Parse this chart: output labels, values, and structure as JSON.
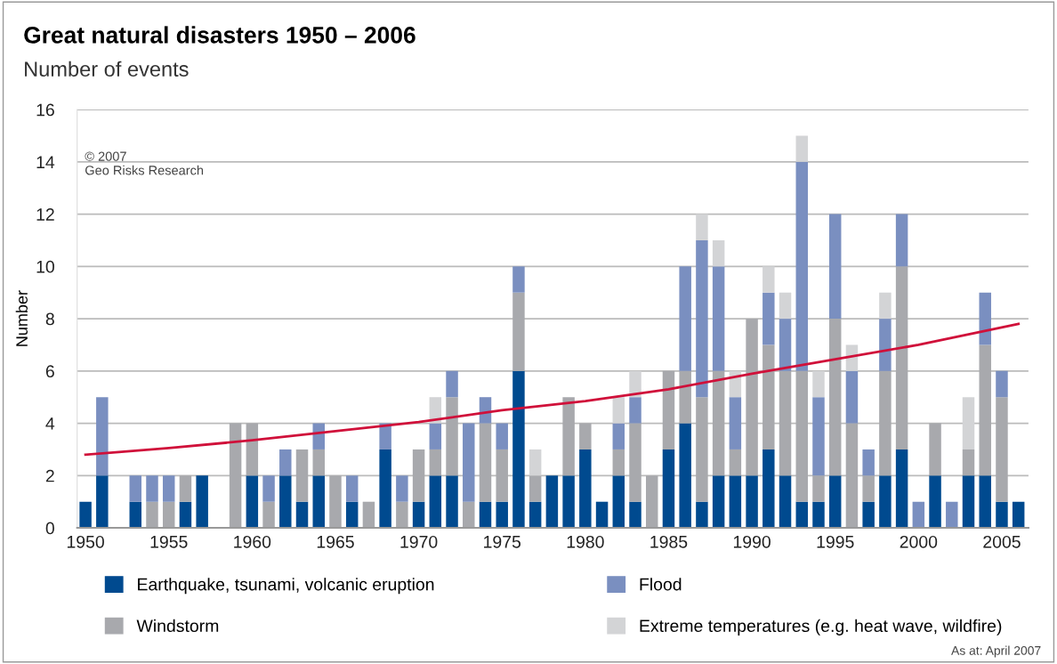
{
  "chart_data": {
    "type": "bar",
    "title": "Great natural disasters 1950 – 2006",
    "subtitle": "Number of events",
    "ylabel": "Number",
    "x": [
      1950,
      1951,
      1952,
      1953,
      1954,
      1955,
      1956,
      1957,
      1958,
      1959,
      1960,
      1961,
      1962,
      1963,
      1964,
      1965,
      1966,
      1967,
      1968,
      1969,
      1970,
      1971,
      1972,
      1973,
      1974,
      1975,
      1976,
      1977,
      1978,
      1979,
      1980,
      1981,
      1982,
      1983,
      1984,
      1985,
      1986,
      1987,
      1988,
      1989,
      1990,
      1991,
      1992,
      1993,
      1994,
      1995,
      1996,
      1997,
      1998,
      1999,
      2000,
      2001,
      2002,
      2003,
      2004,
      2005,
      2006
    ],
    "stacked": true,
    "series": [
      {
        "name": "Earthquake, tsunami, volcanic eruption",
        "color": "#004a8f",
        "values": [
          1,
          2,
          0,
          1,
          0,
          0,
          1,
          2,
          0,
          0,
          2,
          0,
          2,
          1,
          2,
          0,
          1,
          0,
          3,
          0,
          1,
          2,
          2,
          0,
          1,
          1,
          6,
          1,
          2,
          2,
          3,
          1,
          2,
          1,
          0,
          3,
          4,
          1,
          2,
          2,
          2,
          3,
          2,
          1,
          1,
          2,
          0,
          1,
          2,
          3,
          0,
          2,
          0,
          2,
          2,
          1,
          1
        ]
      },
      {
        "name": "Windstorm",
        "color": "#a8a9ad",
        "values": [
          0,
          0,
          0,
          0,
          1,
          1,
          1,
          0,
          0,
          4,
          2,
          1,
          0,
          2,
          1,
          2,
          0,
          1,
          0,
          1,
          2,
          1,
          3,
          1,
          3,
          2,
          3,
          1,
          0,
          3,
          1,
          0,
          1,
          3,
          2,
          3,
          2,
          4,
          4,
          1,
          6,
          4,
          4,
          5,
          1,
          6,
          4,
          1,
          4,
          7,
          0,
          2,
          0,
          1,
          5,
          4,
          0
        ]
      },
      {
        "name": "Flood",
        "color": "#7a8fc0",
        "values": [
          0,
          3,
          0,
          1,
          1,
          1,
          0,
          0,
          0,
          0,
          0,
          1,
          1,
          0,
          1,
          0,
          1,
          0,
          1,
          1,
          0,
          1,
          1,
          3,
          1,
          1,
          1,
          0,
          0,
          0,
          0,
          0,
          1,
          1,
          0,
          0,
          4,
          6,
          4,
          2,
          0,
          2,
          2,
          8,
          3,
          4,
          2,
          1,
          2,
          2,
          1,
          0,
          1,
          0,
          2,
          1,
          0
        ]
      },
      {
        "name": "Extreme temperatures (e.g. heat wave, wildfire)",
        "color": "#d3d4d6",
        "values": [
          0,
          0,
          0,
          0,
          0,
          0,
          0,
          0,
          0,
          0,
          0,
          0,
          0,
          0,
          0,
          0,
          0,
          0,
          0,
          0,
          0,
          1,
          0,
          0,
          0,
          0,
          0,
          1,
          0,
          0,
          0,
          0,
          1,
          1,
          0,
          0,
          0,
          1,
          1,
          1,
          0,
          1,
          1,
          1,
          1,
          0,
          1,
          0,
          1,
          0,
          0,
          0,
          0,
          2,
          0,
          0,
          0
        ]
      },
      {
        "type": "line",
        "color": "#d0103a",
        "x": [
          1950,
          1955,
          1960,
          1965,
          1970,
          1975,
          1980,
          1985,
          1990,
          1995,
          2000,
          2006
        ],
        "values": [
          2.8,
          3.05,
          3.35,
          3.7,
          4.05,
          4.5,
          4.85,
          5.3,
          5.9,
          6.45,
          7.0,
          7.8
        ]
      }
    ],
    "xlim": [
      1949.5,
      2006.6
    ],
    "xticks": [
      1950,
      1955,
      1960,
      1965,
      1970,
      1975,
      1980,
      1985,
      1990,
      1995,
      2000,
      2005
    ],
    "ylim": [
      0,
      16
    ],
    "yticks": [
      0,
      2,
      4,
      6,
      8,
      10,
      12,
      14,
      16
    ],
    "grid": "y",
    "legend": "bottom",
    "annotations": [
      "© 2007",
      "Geo Risks Research",
      "As at: April 2007"
    ]
  }
}
